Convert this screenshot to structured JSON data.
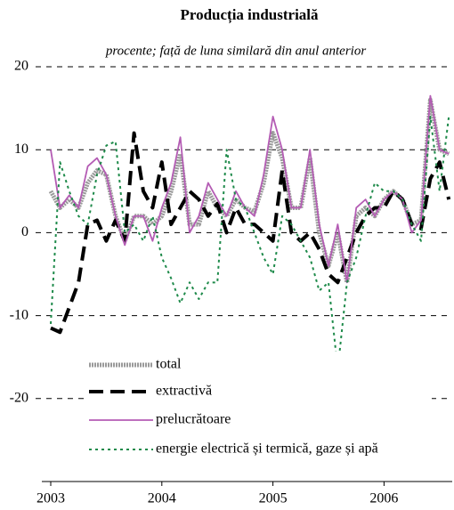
{
  "chart_data": {
    "type": "line",
    "title": "Producția industrială",
    "subtitle": "procente; față de luna similară din anul anterior",
    "categories": [
      "2003",
      null,
      null,
      null,
      null,
      null,
      null,
      null,
      null,
      null,
      null,
      null,
      "2004",
      null,
      null,
      null,
      null,
      null,
      null,
      null,
      null,
      null,
      null,
      null,
      "2005",
      null,
      null,
      null,
      null,
      null,
      null,
      null,
      null,
      null,
      null,
      null,
      "2006",
      null,
      null,
      null,
      null,
      null,
      null,
      null
    ],
    "series": [
      {
        "name": "total",
        "color": "#9a9a9a",
        "style": "thick",
        "values": [
          5,
          3,
          4,
          3,
          6,
          7.5,
          7,
          2,
          -1,
          2,
          2,
          1,
          2,
          5,
          9.5,
          1,
          1,
          5,
          3,
          2,
          4,
          3,
          2.5,
          6,
          12,
          9,
          3,
          3,
          9,
          0,
          -4,
          0,
          -6,
          2,
          3,
          2,
          4,
          5,
          4,
          1,
          1.5,
          16,
          10,
          9.5
        ]
      },
      {
        "name": "extractivă",
        "color": "#000000",
        "style": "dashed",
        "values": [
          -11.5,
          -12,
          -9,
          -6,
          1,
          1.5,
          -1,
          1.5,
          -1,
          12,
          5,
          3,
          8.5,
          1,
          3,
          5,
          4,
          2,
          3.5,
          0,
          3,
          1,
          1,
          0,
          -1,
          7.5,
          0,
          -1,
          0,
          -2,
          -5,
          -6,
          -3,
          0,
          2,
          3,
          3,
          5,
          4,
          1,
          0.5,
          6.5,
          8.5,
          4
        ]
      },
      {
        "name": "prelucrătoare",
        "color": "#b45cb4",
        "style": "solid",
        "values": [
          10,
          3,
          4.5,
          3,
          8,
          9,
          7,
          2,
          -1.5,
          2,
          2,
          -1,
          3,
          6,
          11.5,
          0,
          2,
          6,
          4,
          2,
          5,
          3,
          2,
          7,
          14,
          10,
          3,
          3,
          10,
          1,
          -4,
          1,
          -6,
          3,
          4,
          2,
          4,
          5,
          4,
          0,
          1.5,
          16.5,
          10,
          9.5
        ]
      },
      {
        "name": "energie electrică și termică, gaze și apă",
        "color": "#1e8a4a",
        "style": "dotted",
        "values": [
          -11,
          8.5,
          5,
          2,
          1,
          7,
          10.5,
          11,
          0,
          1,
          -1,
          2,
          -3,
          -5.5,
          -8.5,
          -6,
          -8,
          -6,
          -6,
          10,
          4,
          3,
          0,
          -3,
          -5,
          2,
          1,
          -1,
          -3,
          -7,
          -6,
          -16.5,
          -6,
          -3,
          2,
          6,
          5,
          5,
          4,
          1,
          -1,
          14,
          5,
          14
        ]
      }
    ],
    "ylim": [
      -30,
      20
    ],
    "yticks": [
      -20,
      -10,
      0,
      10,
      20
    ],
    "grid": true,
    "legend": "lower left"
  }
}
